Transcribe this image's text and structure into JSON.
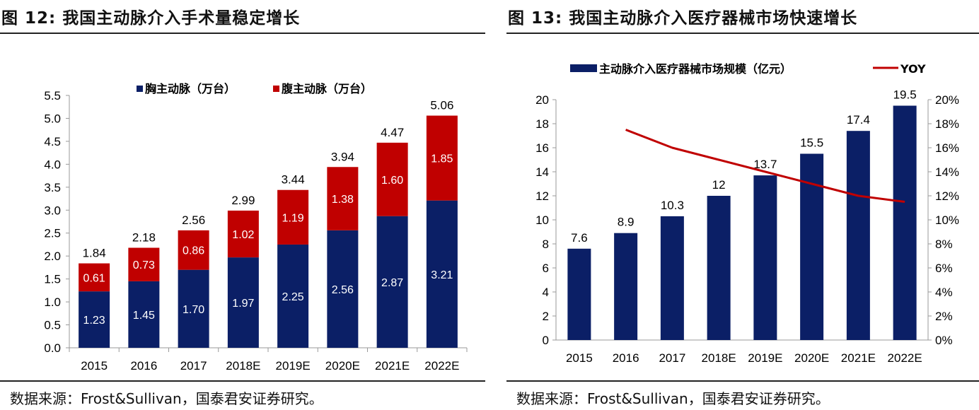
{
  "left": {
    "title": "图 12:  我国主动脉介入手术量稳定增长",
    "source": "数据来源：Frost&Sullivan，国泰君安证券研究。"
  },
  "right": {
    "title": "图 13:  我国主动脉介入医疗器械市场快速增长",
    "source": "数据来源：Frost&Sullivan，国泰君安证券研究。"
  },
  "chart_data": [
    {
      "type": "bar",
      "stacked": true,
      "categories": [
        "2015",
        "2016",
        "2017",
        "2018E",
        "2019E",
        "2020E",
        "2021E",
        "2022E"
      ],
      "series": [
        {
          "name": "胸主动脉（万台）",
          "color": "#0b1f66",
          "values": [
            1.23,
            1.45,
            1.7,
            1.97,
            2.25,
            2.56,
            2.87,
            3.21
          ]
        },
        {
          "name": "腹主动脉（万台）",
          "color": "#c00000",
          "values": [
            0.61,
            0.73,
            0.86,
            1.02,
            1.19,
            1.38,
            1.6,
            1.85
          ]
        }
      ],
      "series_labels": [
        [
          "1.23",
          "1.45",
          "1.70",
          "1.97",
          "2.25",
          "2.56",
          "2.87",
          "3.21"
        ],
        [
          "0.61",
          "0.73",
          "0.86",
          "1.02",
          "1.19",
          "1.38",
          "1.60",
          "1.85"
        ]
      ],
      "totals": [
        "1.84",
        "2.18",
        "2.56",
        "2.99",
        "3.44",
        "3.94",
        "4.47",
        "5.06"
      ],
      "y_ticks": [
        "0.0",
        "0.5",
        "1.0",
        "1.5",
        "2.0",
        "2.5",
        "3.0",
        "3.5",
        "4.0",
        "4.5",
        "5.0",
        "5.5"
      ],
      "ylim": [
        0,
        5.5
      ],
      "grid": false,
      "legend": "top-center"
    },
    {
      "type": "bar",
      "categories": [
        "2015",
        "2016",
        "2017",
        "2018E",
        "2019E",
        "2020E",
        "2021E",
        "2022E"
      ],
      "series": [
        {
          "name": "主动脉介入医疗器械市场规模（亿元）",
          "color": "#0b1f66",
          "type": "bar",
          "axis": "left",
          "values": [
            7.6,
            8.9,
            10.3,
            12,
            13.7,
            15.5,
            17.4,
            19.5
          ]
        },
        {
          "name": "YOY",
          "color": "#c00000",
          "type": "line",
          "axis": "right",
          "values": [
            null,
            0.175,
            0.16,
            0.15,
            0.14,
            0.13,
            0.12,
            0.115
          ]
        }
      ],
      "bar_labels": [
        "7.6",
        "8.9",
        "10.3",
        "12",
        "13.7",
        "15.5",
        "17.4",
        "19.5"
      ],
      "y_ticks": [
        "0",
        "2",
        "4",
        "6",
        "8",
        "10",
        "12",
        "14",
        "16",
        "18",
        "20"
      ],
      "ylim": [
        0,
        20
      ],
      "y2_ticks": [
        "0%",
        "2%",
        "4%",
        "6%",
        "8%",
        "10%",
        "12%",
        "14%",
        "16%",
        "18%",
        "20%"
      ],
      "y2lim": [
        0,
        0.2
      ],
      "grid": false,
      "legend": "top-center"
    }
  ]
}
